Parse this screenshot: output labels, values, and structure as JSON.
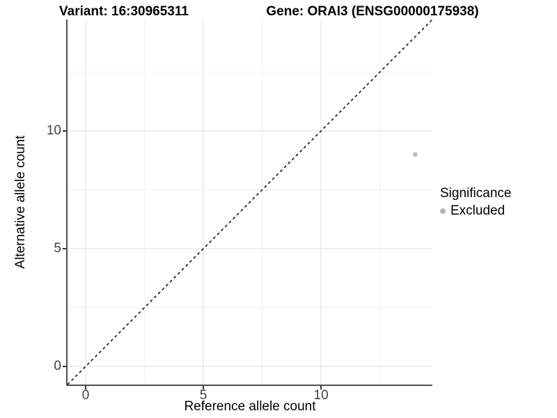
{
  "chart_data": {
    "type": "scatter",
    "title_left": "Variant: 16:30965311",
    "title_right": "Gene: ORAI3 (ENSG00000175938)",
    "xlabel": "Reference allele count",
    "ylabel": "Alternative allele count",
    "xlim": [
      -0.77,
      14.73
    ],
    "ylim": [
      -0.77,
      14.73
    ],
    "x_major_ticks": [
      0,
      5,
      10
    ],
    "x_minor_ticks": [
      2.5,
      7.5,
      12.5
    ],
    "y_major_ticks": [
      0,
      5,
      10
    ],
    "y_minor_ticks": [
      2.5,
      7.5,
      12.5
    ],
    "grid": "major+minor, light gray on white",
    "series": [
      {
        "name": "Excluded",
        "points": [
          [
            14,
            9
          ]
        ],
        "color": "#bdbdbd",
        "point_radius": 3.5
      }
    ],
    "identity_line": {
      "style": "dashed",
      "color": "#000000",
      "from": [
        -0.77,
        -0.77
      ],
      "to": [
        14.73,
        14.73
      ]
    },
    "legend": {
      "title": "Significance",
      "position": "right",
      "entries": [
        {
          "label": "Excluded",
          "color": "#b5b5b5"
        }
      ]
    }
  },
  "colors": {
    "background": "#ffffff",
    "axis_line": "#4d4d4d",
    "tick_mark": "#333333",
    "tick_label": "#404040",
    "grid_major": "#e4e4e4",
    "grid_minor": "#f1f1f1",
    "title_text": "#000000"
  }
}
